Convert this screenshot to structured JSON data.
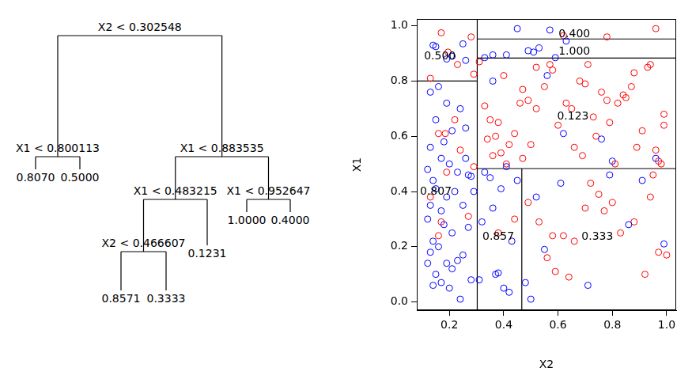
{
  "tree": {
    "split": "X2 < 0.302548",
    "left": {
      "split": "X1 < 0.800113",
      "left": {
        "leaf": "0.8070"
      },
      "right": {
        "leaf": "0.5000"
      }
    },
    "right": {
      "split": "X1 < 0.883535",
      "left": {
        "split": "X1 < 0.483215",
        "left": {
          "split": "X2 < 0.466607",
          "left": {
            "leaf": "0.8571"
          },
          "right": {
            "leaf": "0.3333"
          }
        },
        "right": {
          "leaf": "0.1231"
        }
      },
      "right": {
        "split": "X1 < 0.952647",
        "left": {
          "leaf": "1.0000"
        },
        "right": {
          "leaf": "0.4000"
        }
      }
    }
  },
  "chart_data": {
    "type": "scatter",
    "x_label": "X2",
    "y_label": "X1",
    "xlim": [
      0.08,
      1.035
    ],
    "ylim": [
      -0.03,
      1.025
    ],
    "xticks": [
      0.2,
      0.4,
      0.6,
      0.8,
      {
        "value": 1,
        "label": "1.0"
      }
    ],
    "yticks": [
      {
        "value": 0,
        "label": "0.0"
      },
      0.2,
      0.4,
      0.6,
      0.8,
      {
        "value": 1,
        "label": "1.0"
      }
    ],
    "grid": false,
    "series": [
      {
        "color": "#0000ff",
        "marker": "open circle",
        "x": [
          0.14,
          0.15,
          0.19,
          0.21,
          0.25,
          0.26,
          0.13,
          0.16,
          0.19,
          0.24,
          0.21,
          0.15,
          0.18,
          0.26,
          0.13,
          0.12,
          0.14,
          0.17,
          0.2,
          0.23,
          0.27,
          0.28,
          0.15,
          0.19,
          0.22,
          0.13,
          0.17,
          0.25,
          0.12,
          0.18,
          0.21,
          0.27,
          0.14,
          0.16,
          0.19,
          0.23,
          0.25,
          0.13,
          0.15,
          0.17,
          0.14,
          0.21,
          0.24,
          0.28,
          0.29,
          0.12,
          0.26,
          0.2,
          0.45,
          0.57,
          0.33,
          0.36,
          0.41,
          0.49,
          0.51,
          0.53,
          0.59,
          0.63,
          0.36,
          0.62,
          0.76,
          0.8,
          0.96,
          0.41,
          0.56,
          0.32,
          0.35,
          0.36,
          0.37,
          0.38,
          0.4,
          0.42,
          0.43,
          0.45,
          0.33,
          0.39,
          0.31,
          0.48,
          0.5,
          0.52,
          0.55,
          0.61,
          0.71,
          0.79,
          0.86,
          0.91,
          0.99
        ],
        "y": [
          0.93,
          0.925,
          0.88,
          0.89,
          0.935,
          0.875,
          0.76,
          0.78,
          0.72,
          0.7,
          0.62,
          0.66,
          0.58,
          0.63,
          0.56,
          0.48,
          0.44,
          0.52,
          0.5,
          0.47,
          0.46,
          0.455,
          0.41,
          0.38,
          0.4,
          0.35,
          0.33,
          0.35,
          0.3,
          0.28,
          0.25,
          0.27,
          0.22,
          0.2,
          0.14,
          0.15,
          0.17,
          0.18,
          0.1,
          0.07,
          0.06,
          0.12,
          0.01,
          0.08,
          0.4,
          0.14,
          0.52,
          0.05,
          0.99,
          0.985,
          0.885,
          0.895,
          0.895,
          0.91,
          0.905,
          0.92,
          0.885,
          0.945,
          0.8,
          0.61,
          0.59,
          0.51,
          0.52,
          0.49,
          0.82,
          0.29,
          0.45,
          0.34,
          0.1,
          0.105,
          0.05,
          0.035,
          0.22,
          0.44,
          0.47,
          0.41,
          0.08,
          0.07,
          0.01,
          0.38,
          0.19,
          0.43,
          0.06,
          0.46,
          0.28,
          0.44,
          0.21
        ]
      },
      {
        "color": "#ff0000",
        "marker": "open circle",
        "x": [
          0.17,
          0.195,
          0.13,
          0.23,
          0.29,
          0.28,
          0.13,
          0.16,
          0.185,
          0.17,
          0.16,
          0.22,
          0.24,
          0.27,
          0.29,
          0.19,
          0.62,
          0.78,
          0.96,
          0.31,
          0.33,
          0.35,
          0.37,
          0.38,
          0.34,
          0.36,
          0.39,
          0.41,
          0.42,
          0.44,
          0.46,
          0.47,
          0.49,
          0.52,
          0.55,
          0.57,
          0.58,
          0.6,
          0.63,
          0.65,
          0.68,
          0.7,
          0.71,
          0.73,
          0.76,
          0.78,
          0.79,
          0.82,
          0.84,
          0.85,
          0.87,
          0.89,
          0.91,
          0.93,
          0.94,
          0.96,
          0.97,
          0.98,
          0.99,
          0.99,
          0.47,
          0.5,
          0.52,
          0.66,
          0.69,
          0.74,
          0.81,
          0.88,
          0.4,
          0.38,
          0.44,
          0.49,
          0.53,
          0.56,
          0.59,
          0.62,
          0.64,
          0.66,
          0.7,
          0.72,
          0.75,
          0.77,
          0.8,
          0.83,
          0.88,
          0.92,
          0.94,
          0.95,
          0.97,
          1.0,
          0.58
        ],
        "y": [
          0.975,
          0.905,
          0.81,
          0.86,
          0.825,
          0.96,
          0.38,
          0.61,
          0.61,
          0.29,
          0.24,
          0.66,
          0.55,
          0.31,
          0.49,
          0.47,
          0.965,
          0.96,
          0.99,
          0.87,
          0.71,
          0.66,
          0.6,
          0.65,
          0.59,
          0.53,
          0.54,
          0.5,
          0.57,
          0.61,
          0.72,
          0.77,
          0.73,
          0.7,
          0.78,
          0.86,
          0.84,
          0.64,
          0.72,
          0.7,
          0.8,
          0.79,
          0.86,
          0.67,
          0.76,
          0.73,
          0.65,
          0.72,
          0.75,
          0.74,
          0.78,
          0.56,
          0.62,
          0.85,
          0.86,
          0.55,
          0.51,
          0.5,
          0.68,
          0.64,
          0.52,
          0.57,
          0.85,
          0.56,
          0.53,
          0.6,
          0.5,
          0.83,
          0.82,
          0.25,
          0.3,
          0.36,
          0.29,
          0.16,
          0.11,
          0.24,
          0.09,
          0.22,
          0.34,
          0.43,
          0.39,
          0.33,
          0.36,
          0.25,
          0.29,
          0.1,
          0.38,
          0.46,
          0.18,
          0.17,
          0.24
        ]
      }
    ],
    "splits": [
      {
        "x": [
          0.302548,
          0.302548
        ],
        "y": [
          -0.03,
          1.025
        ]
      },
      {
        "x": [
          0.08,
          0.302548
        ],
        "y": [
          0.800113,
          0.800113
        ]
      },
      {
        "x": [
          0.302548,
          1.035
        ],
        "y": [
          0.883535,
          0.883535
        ]
      },
      {
        "x": [
          0.302548,
          1.035
        ],
        "y": [
          0.952647,
          0.952647
        ]
      },
      {
        "x": [
          0.302548,
          1.035
        ],
        "y": [
          0.483215,
          0.483215
        ]
      },
      {
        "x": [
          0.466607,
          0.466607
        ],
        "y": [
          -0.03,
          0.483215
        ]
      }
    ],
    "region_labels": [
      {
        "text": "0.500",
        "x": 0.165,
        "y": 0.89
      },
      {
        "text": "0.400",
        "x": 0.66,
        "y": 0.97
      },
      {
        "text": "1.000",
        "x": 0.66,
        "y": 0.905
      },
      {
        "text": "0.123",
        "x": 0.655,
        "y": 0.67
      },
      {
        "text": "0.807",
        "x": 0.15,
        "y": 0.4
      },
      {
        "text": "0.857",
        "x": 0.38,
        "y": 0.235
      },
      {
        "text": "0.333",
        "x": 0.745,
        "y": 0.235
      }
    ]
  }
}
